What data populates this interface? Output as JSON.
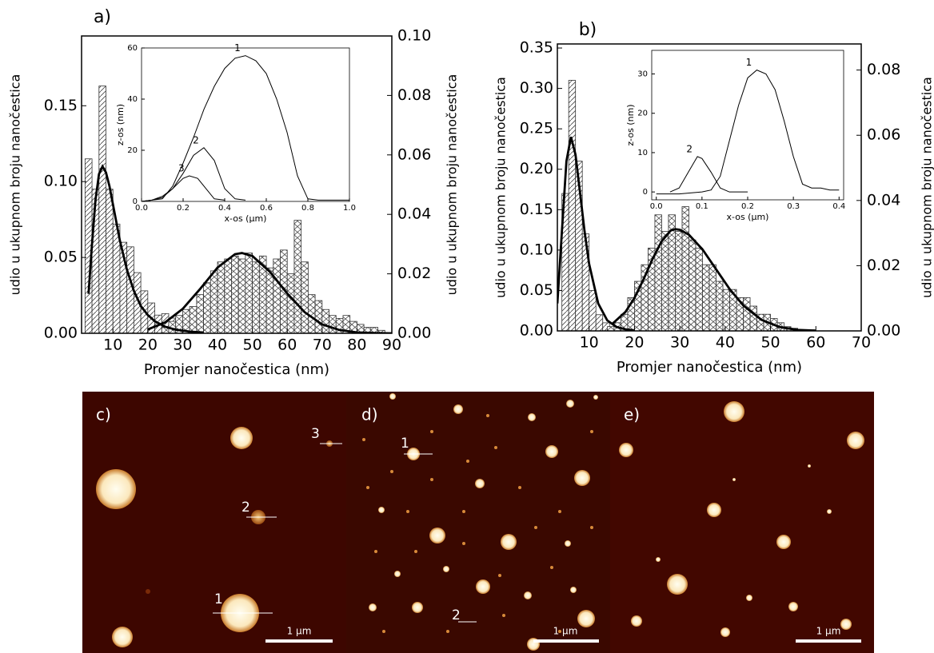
{
  "chart_data": [
    {
      "type": "histogram",
      "label": "a)",
      "xlabel": "Promjer nanočestica (nm)",
      "ylabel": "udio u ukupnom broju nanočestica",
      "y2label": "udio u ukupnom broju nanočestica",
      "xlim": [
        1,
        90
      ],
      "xticks": [
        10,
        20,
        30,
        40,
        50,
        60,
        70,
        80,
        90
      ],
      "ylim": [
        0,
        0.196
      ],
      "yticks": [
        {
          "value": 0,
          "label": "0.00"
        },
        {
          "value": 0.05,
          "label": "0.05"
        },
        {
          "value": 0.1,
          "label": "0.10"
        },
        {
          "value": 0.15,
          "label": "0.15"
        }
      ],
      "y2lim": [
        0,
        0.1
      ],
      "y2ticks": [
        {
          "value": 0,
          "label": "0.00"
        },
        {
          "value": 0.02,
          "label": "0.02"
        },
        {
          "value": 0.04,
          "label": "0.04"
        },
        {
          "value": 0.06,
          "label": "0.06"
        },
        {
          "value": 0.08,
          "label": "0.08"
        },
        {
          "value": 0.1,
          "label": "0.10"
        }
      ],
      "series": [
        {
          "type": "histogram",
          "hatch": "diagonal",
          "bins": [
            2,
            4,
            6,
            8,
            10,
            12,
            14,
            16,
            18,
            20,
            22,
            24,
            26,
            28,
            30
          ],
          "values": [
            0.115,
            0.095,
            0.163,
            0.095,
            0.072,
            0.06,
            0.057,
            0.04,
            0.028,
            0.02,
            0.012,
            0.013,
            0.01,
            0.005
          ]
        },
        {
          "type": "histogram",
          "hatch": "cross",
          "axis": "y2",
          "bins": [
            24,
            26,
            28,
            30,
            32,
            34,
            36,
            38,
            40,
            42,
            44,
            46,
            48,
            50,
            52,
            54,
            56,
            58,
            60,
            62,
            64,
            66,
            68,
            70,
            72,
            74,
            76,
            78,
            80,
            82,
            84,
            86,
            88
          ],
          "values": [
            0.002,
            0.004,
            0.006,
            0.008,
            0.009,
            0.013,
            0.017,
            0.021,
            0.024,
            0.025,
            0.026,
            0.025,
            0.027,
            0.024,
            0.026,
            0.022,
            0.025,
            0.028,
            0.02,
            0.038,
            0.024,
            0.013,
            0.011,
            0.008,
            0.006,
            0.005,
            0.006,
            0.004,
            0.003,
            0.002,
            0.002,
            0.001
          ]
        },
        {
          "type": "line",
          "color": "#000000",
          "x": [
            3,
            4,
            5,
            6,
            7,
            8,
            9,
            10,
            12,
            14,
            16,
            18,
            20,
            22,
            25,
            28,
            32,
            36
          ],
          "values": [
            0.026,
            0.059,
            0.088,
            0.105,
            0.11,
            0.106,
            0.097,
            0.085,
            0.061,
            0.042,
            0.028,
            0.018,
            0.012,
            0.008,
            0.0043,
            0.0024,
            0.0011,
            0.0005
          ]
        },
        {
          "type": "line",
          "color": "#000000",
          "axis": "y2",
          "x": [
            20,
            25,
            30,
            35,
            40,
            45,
            47,
            50,
            55,
            60,
            65,
            70,
            75,
            80,
            85,
            90
          ],
          "values": [
            0.0013,
            0.0037,
            0.0082,
            0.0149,
            0.0221,
            0.0266,
            0.027,
            0.026,
            0.0207,
            0.0134,
            0.0071,
            0.003,
            0.0011,
            0.0003,
            0.0001,
            0
          ]
        }
      ]
    },
    {
      "type": "line",
      "xlabel": "x-os (µm)",
      "ylabel": "z-os (nm)",
      "xlim": [
        0,
        1
      ],
      "xticks": [
        {
          "value": 0,
          "label": "0.0"
        },
        {
          "value": 0.2,
          "label": "0.2"
        },
        {
          "value": 0.4,
          "label": "0.4"
        },
        {
          "value": 0.6,
          "label": "0.6"
        },
        {
          "value": 0.8,
          "label": "0.8"
        },
        {
          "value": 1,
          "label": "1.0"
        }
      ],
      "ylim": [
        0,
        60
      ],
      "yticks": [
        0,
        20,
        40,
        60
      ],
      "series": [
        {
          "name": "1",
          "color": "#000000",
          "x": [
            0,
            0.05,
            0.1,
            0.15,
            0.2,
            0.25,
            0.3,
            0.35,
            0.4,
            0.45,
            0.5,
            0.55,
            0.6,
            0.65,
            0.7,
            0.75,
            0.8,
            0.85,
            0.9,
            0.95,
            1
          ],
          "values": [
            0,
            0.5,
            1,
            6,
            15,
            25,
            36,
            45,
            52,
            56,
            57,
            55,
            50,
            40,
            27,
            10,
            1,
            0.5,
            0.5,
            0.5,
            0.5
          ]
        },
        {
          "name": "2",
          "color": "#000000",
          "x": [
            0,
            0.05,
            0.1,
            0.15,
            0.2,
            0.25,
            0.3,
            0.35,
            0.4,
            0.45,
            0.5
          ],
          "values": [
            0,
            0.5,
            1.5,
            5,
            11,
            18,
            21,
            16,
            5,
            1,
            0.5
          ]
        },
        {
          "name": "3",
          "color": "#000000",
          "x": [
            0,
            0.05,
            0.1,
            0.15,
            0.2,
            0.23,
            0.27,
            0.3,
            0.35,
            0.4
          ],
          "values": [
            0,
            0.5,
            2,
            5,
            9,
            10,
            9,
            6,
            1,
            0.5
          ]
        }
      ]
    },
    {
      "type": "histogram",
      "label": "b)",
      "xlabel": "Promjer nanočestica (nm)",
      "ylabel": "udio u ukupnom broju nanočestica",
      "y2label": "udio u ukupnom broju nanočestica",
      "xlim": [
        3,
        70
      ],
      "xticks": [
        10,
        20,
        30,
        40,
        50,
        60,
        70
      ],
      "ylim": [
        0,
        0.355
      ],
      "yticks": [
        {
          "value": 0,
          "label": "0.00"
        },
        {
          "value": 0.05,
          "label": "0.05"
        },
        {
          "value": 0.1,
          "label": "0.10"
        },
        {
          "value": 0.15,
          "label": "0.15"
        },
        {
          "value": 0.2,
          "label": "0.20"
        },
        {
          "value": 0.25,
          "label": "0.25"
        },
        {
          "value": 0.3,
          "label": "0.30"
        },
        {
          "value": 0.35,
          "label": "0.35"
        }
      ],
      "y2lim": [
        0,
        0.088
      ],
      "y2ticks": [
        {
          "value": 0,
          "label": "0.00"
        },
        {
          "value": 0.02,
          "label": "0.02"
        },
        {
          "value": 0.04,
          "label": "0.04"
        },
        {
          "value": 0.06,
          "label": "0.06"
        },
        {
          "value": 0.08,
          "label": "0.08"
        }
      ],
      "series": [
        {
          "type": "histogram",
          "hatch": "diagonal",
          "bins": [
            4,
            5.5,
            7,
            8.5,
            10,
            11.5,
            13,
            14.5
          ],
          "values": [
            0.17,
            0.31,
            0.21,
            0.12,
            0.05,
            0.02,
            0.01
          ]
        },
        {
          "type": "histogram",
          "hatch": "cross",
          "axis": "y2",
          "bins": [
            14,
            15.5,
            17,
            18.5,
            20,
            21.5,
            23,
            24.5,
            26,
            27.5,
            29,
            30.5,
            32,
            33.5,
            35,
            36.5,
            38,
            39.5,
            41,
            42.5,
            44,
            45.5,
            47,
            48.5,
            50,
            51.5,
            53,
            54.5,
            56
          ],
          "values": [
            0.0013,
            0.0025,
            0.0051,
            0.0102,
            0.0152,
            0.0203,
            0.0254,
            0.0356,
            0.0305,
            0.0356,
            0.0305,
            0.0381,
            0.0279,
            0.0254,
            0.0203,
            0.0203,
            0.0152,
            0.0127,
            0.0127,
            0.0102,
            0.0102,
            0.0076,
            0.0051,
            0.0051,
            0.0038,
            0.0025,
            0.0013,
            0.0008
          ]
        },
        {
          "type": "line",
          "color": "#000000",
          "x": [
            3,
            4,
            5,
            6,
            7,
            8,
            9,
            10,
            12,
            14,
            16,
            18,
            20
          ],
          "values": [
            0.034,
            0.123,
            0.21,
            0.24,
            0.218,
            0.171,
            0.123,
            0.083,
            0.034,
            0.013,
            0.005,
            0.002,
            0.0006
          ]
        },
        {
          "type": "line",
          "color": "#000000",
          "axis": "y2",
          "x": [
            15,
            18,
            20,
            22,
            24,
            26,
            28,
            29,
            30,
            32,
            35,
            38,
            41,
            44,
            48,
            52,
            56,
            60
          ],
          "values": [
            0.002,
            0.0058,
            0.0101,
            0.0158,
            0.0221,
            0.0275,
            0.0308,
            0.0312,
            0.031,
            0.0295,
            0.025,
            0.0189,
            0.0128,
            0.0078,
            0.0034,
            0.0012,
            0.0003,
            0.0001
          ]
        }
      ]
    },
    {
      "type": "line",
      "xlabel": "x-os (µm)",
      "ylabel": "z-os (nm)",
      "xlim": [
        -0.01,
        0.41
      ],
      "xticks": [
        {
          "value": 0,
          "label": "0.0"
        },
        {
          "value": 0.1,
          "label": "0.1"
        },
        {
          "value": 0.2,
          "label": "0.2"
        },
        {
          "value": 0.3,
          "label": "0.3"
        },
        {
          "value": 0.4,
          "label": "0.4"
        }
      ],
      "ylim": [
        -2,
        36
      ],
      "yticks": [
        0,
        10,
        20,
        30
      ],
      "series": [
        {
          "name": "1",
          "color": "#000000",
          "x": [
            0,
            0.05,
            0.1,
            0.12,
            0.14,
            0.16,
            0.18,
            0.2,
            0.22,
            0.24,
            0.26,
            0.28,
            0.3,
            0.32,
            0.34,
            0.36,
            0.38,
            0.4
          ],
          "values": [
            -0.5,
            -0.5,
            0,
            0.5,
            4,
            13,
            22,
            29,
            31,
            30,
            26,
            18,
            9,
            2,
            1,
            1,
            0.5,
            0.5
          ]
        },
        {
          "name": "2",
          "color": "#000000",
          "x": [
            0.03,
            0.05,
            0.07,
            0.09,
            0.1,
            0.12,
            0.14,
            0.16,
            0.2
          ],
          "values": [
            0,
            1,
            5,
            9,
            8.5,
            5,
            1,
            0,
            0
          ]
        }
      ]
    }
  ],
  "images": [
    {
      "label": "c)",
      "scale_bar": "1 µm",
      "markers": [
        "3",
        "2",
        "1"
      ]
    },
    {
      "label": "d)",
      "scale_bar": "1 µm",
      "markers": [
        "1",
        "2"
      ]
    },
    {
      "label": "e)",
      "scale_bar": "1 µm"
    }
  ]
}
